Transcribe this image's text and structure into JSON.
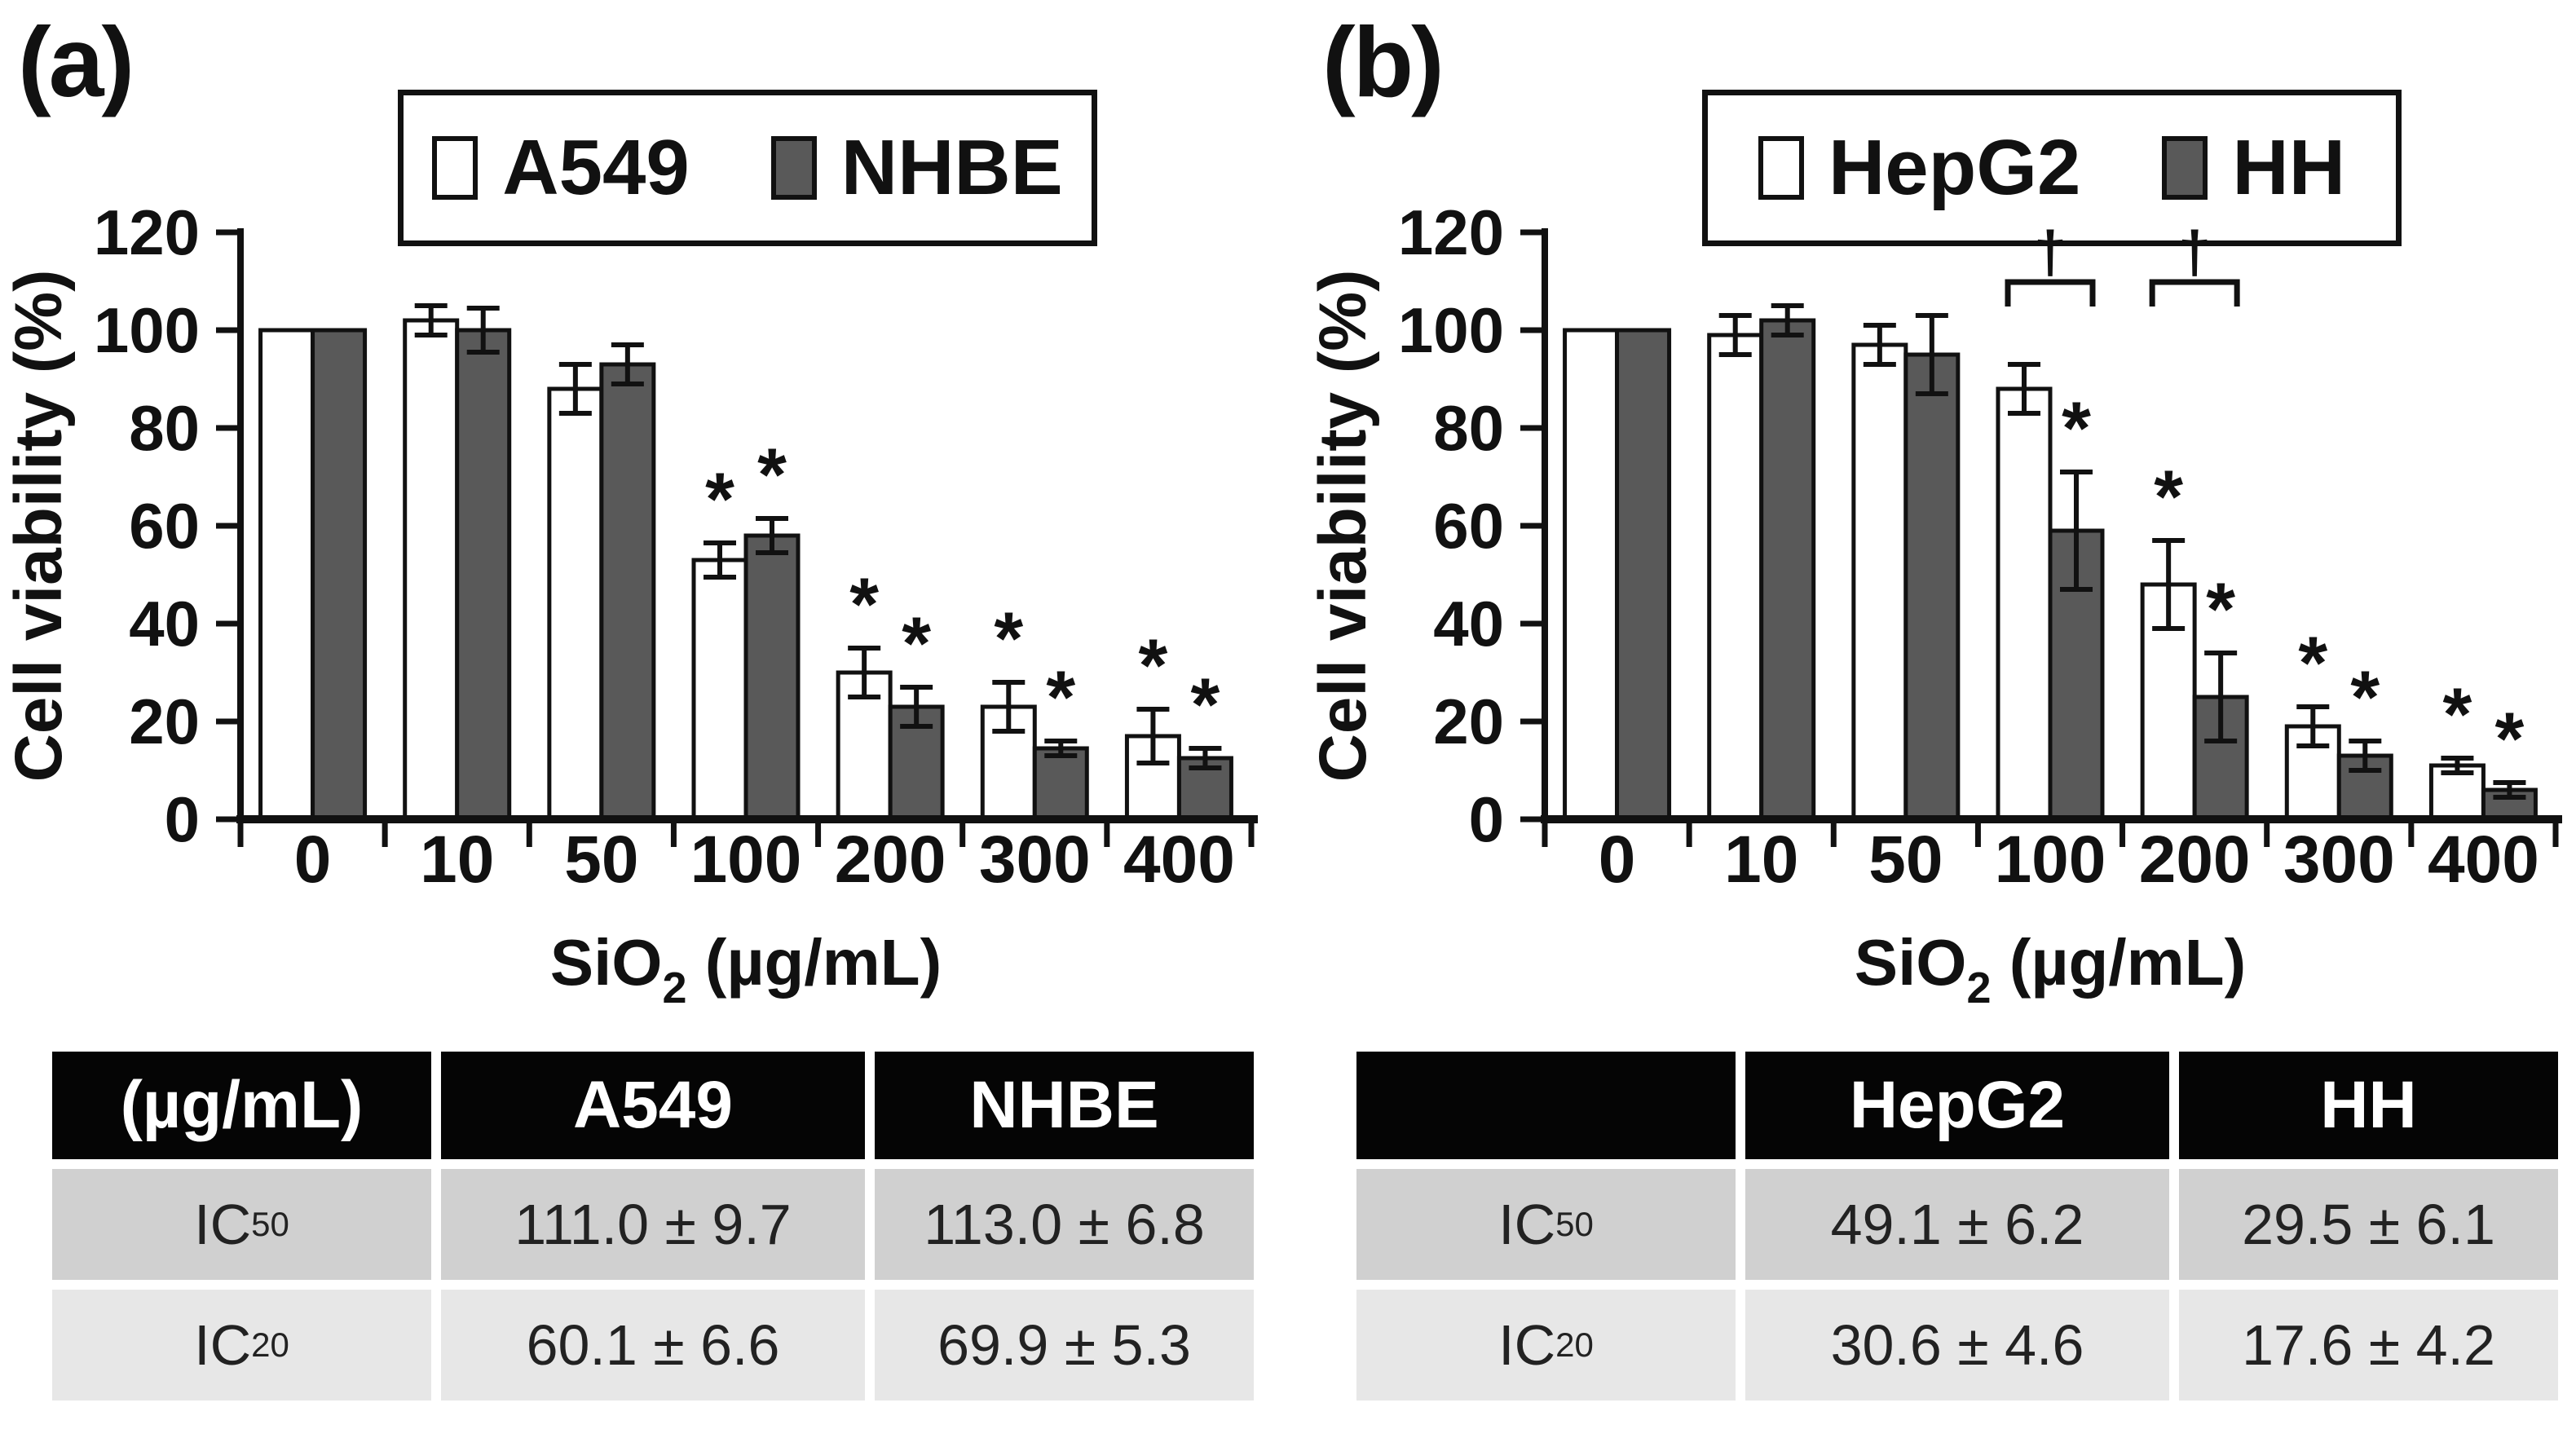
{
  "figure": {
    "panel_a_label": "(a)",
    "panel_b_label": "(b)"
  },
  "colors": {
    "bar_white": "#ffffff",
    "bar_gray": "#595959",
    "axis_black": "#111111",
    "table_header_bg": "#050505",
    "table_row1_bg": "#d0d0d0",
    "table_row2_bg": "#e7e7e7"
  },
  "chart_data": [
    {
      "type": "bar",
      "title": "",
      "categories": [
        "0",
        "10",
        "50",
        "100",
        "200",
        "300",
        "400"
      ],
      "series": [
        {
          "name": "A549",
          "fill": "#ffffff",
          "values": [
            100,
            102,
            88,
            53,
            30,
            23,
            17
          ],
          "errors": [
            0,
            3,
            5,
            3.5,
            5,
            5,
            5.5
          ],
          "sig": [
            "",
            "",
            "",
            "*",
            "*",
            "*",
            "*"
          ]
        },
        {
          "name": "NHBE",
          "fill": "#595959",
          "values": [
            100,
            100,
            93,
            58,
            23,
            14.5,
            12.5
          ],
          "errors": [
            0,
            4.5,
            4,
            3.5,
            4,
            1.5,
            2
          ],
          "sig": [
            "",
            "",
            "",
            "*",
            "*",
            "*",
            "*"
          ]
        }
      ],
      "daggers": [],
      "dagger_symbol": "†",
      "xlabel_main": "SiO",
      "xlabel_sub": "2",
      "xlabel_rest": " (µg/mL)",
      "ylabel": "Cell viability (%)",
      "ylim": [
        0,
        120
      ],
      "yticks": [
        0,
        20,
        40,
        60,
        80,
        100,
        120
      ],
      "grid": "off",
      "legend_position": "top"
    },
    {
      "type": "bar",
      "title": "",
      "categories": [
        "0",
        "10",
        "50",
        "100",
        "200",
        "300",
        "400"
      ],
      "series": [
        {
          "name": "HepG2",
          "fill": "#ffffff",
          "values": [
            100,
            99,
            97,
            88,
            48,
            19,
            11
          ],
          "errors": [
            0,
            4,
            4,
            5,
            9,
            4,
            1.5
          ],
          "sig": [
            "",
            "",
            "",
            "",
            "*",
            "*",
            "*"
          ]
        },
        {
          "name": "HH",
          "fill": "#595959",
          "values": [
            100,
            102,
            95,
            59,
            25,
            13,
            6
          ],
          "errors": [
            0,
            3,
            8,
            12,
            9,
            3,
            1.5
          ],
          "sig": [
            "",
            "",
            "",
            "*",
            "*",
            "*",
            "*"
          ]
        }
      ],
      "daggers": [
        3,
        4
      ],
      "dagger_symbol": "†",
      "xlabel_main": "SiO",
      "xlabel_sub": "2",
      "xlabel_rest": " (µg/mL)",
      "ylabel": "Cell viability (%)",
      "ylim": [
        0,
        120
      ],
      "yticks": [
        0,
        20,
        40,
        60,
        80,
        100,
        120
      ],
      "grid": "off",
      "legend_position": "top"
    }
  ],
  "tables": [
    {
      "headers": [
        "(µg/mL)",
        "A549",
        "NHBE"
      ],
      "rows": [
        {
          "label": "IC",
          "sub": "50",
          "values": [
            "111.0 ± 9.7",
            "113.0 ± 6.8"
          ]
        },
        {
          "label": "IC",
          "sub": "20",
          "values": [
            "60.1 ± 6.6",
            "69.9 ± 5.3"
          ]
        }
      ]
    },
    {
      "headers": [
        "",
        "HepG2",
        "HH"
      ],
      "rows": [
        {
          "label": "IC",
          "sub": "50",
          "values": [
            "49.1 ± 6.2",
            "29.5 ± 6.1"
          ]
        },
        {
          "label": "IC",
          "sub": "20",
          "values": [
            "30.6 ± 4.6",
            "17.6 ± 4.2"
          ]
        }
      ]
    }
  ]
}
